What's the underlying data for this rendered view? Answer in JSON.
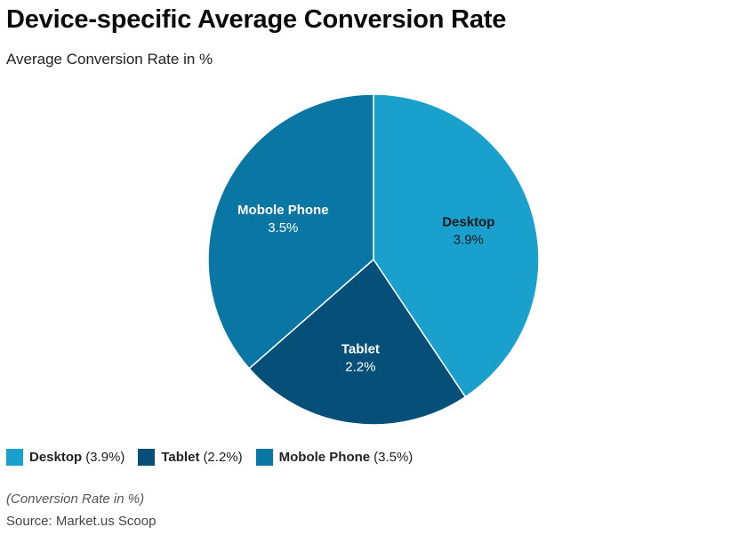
{
  "title": "Device-specific Average Conversion Rate",
  "subtitle": "Average Conversion Rate in %",
  "footnote": "(Conversion Rate in %)",
  "source": "Source: Market.us Scoop",
  "chart_data": {
    "type": "pie",
    "title": "Device-specific Average Conversion Rate",
    "subtitle": "Average Conversion Rate in %",
    "unit": "%",
    "slices": [
      {
        "label": "Desktop",
        "value": 3.9,
        "value_label": "3.9%",
        "legend_value": "(3.9%)",
        "color": "#1aa0cc",
        "label_color": "#1a1a1a"
      },
      {
        "label": "Tablet",
        "value": 2.2,
        "value_label": "2.2%",
        "legend_value": "(2.2%)",
        "color": "#064f78",
        "label_color": "#ffffff"
      },
      {
        "label": "Mobole Phone",
        "value": 3.5,
        "value_label": "3.5%",
        "legend_value": "(3.5%)",
        "color": "#0a76a3",
        "label_color": "#ffffff"
      }
    ],
    "start_angle": "12 o'clock",
    "direction": "clockwise",
    "legend_position": "bottom-left"
  }
}
